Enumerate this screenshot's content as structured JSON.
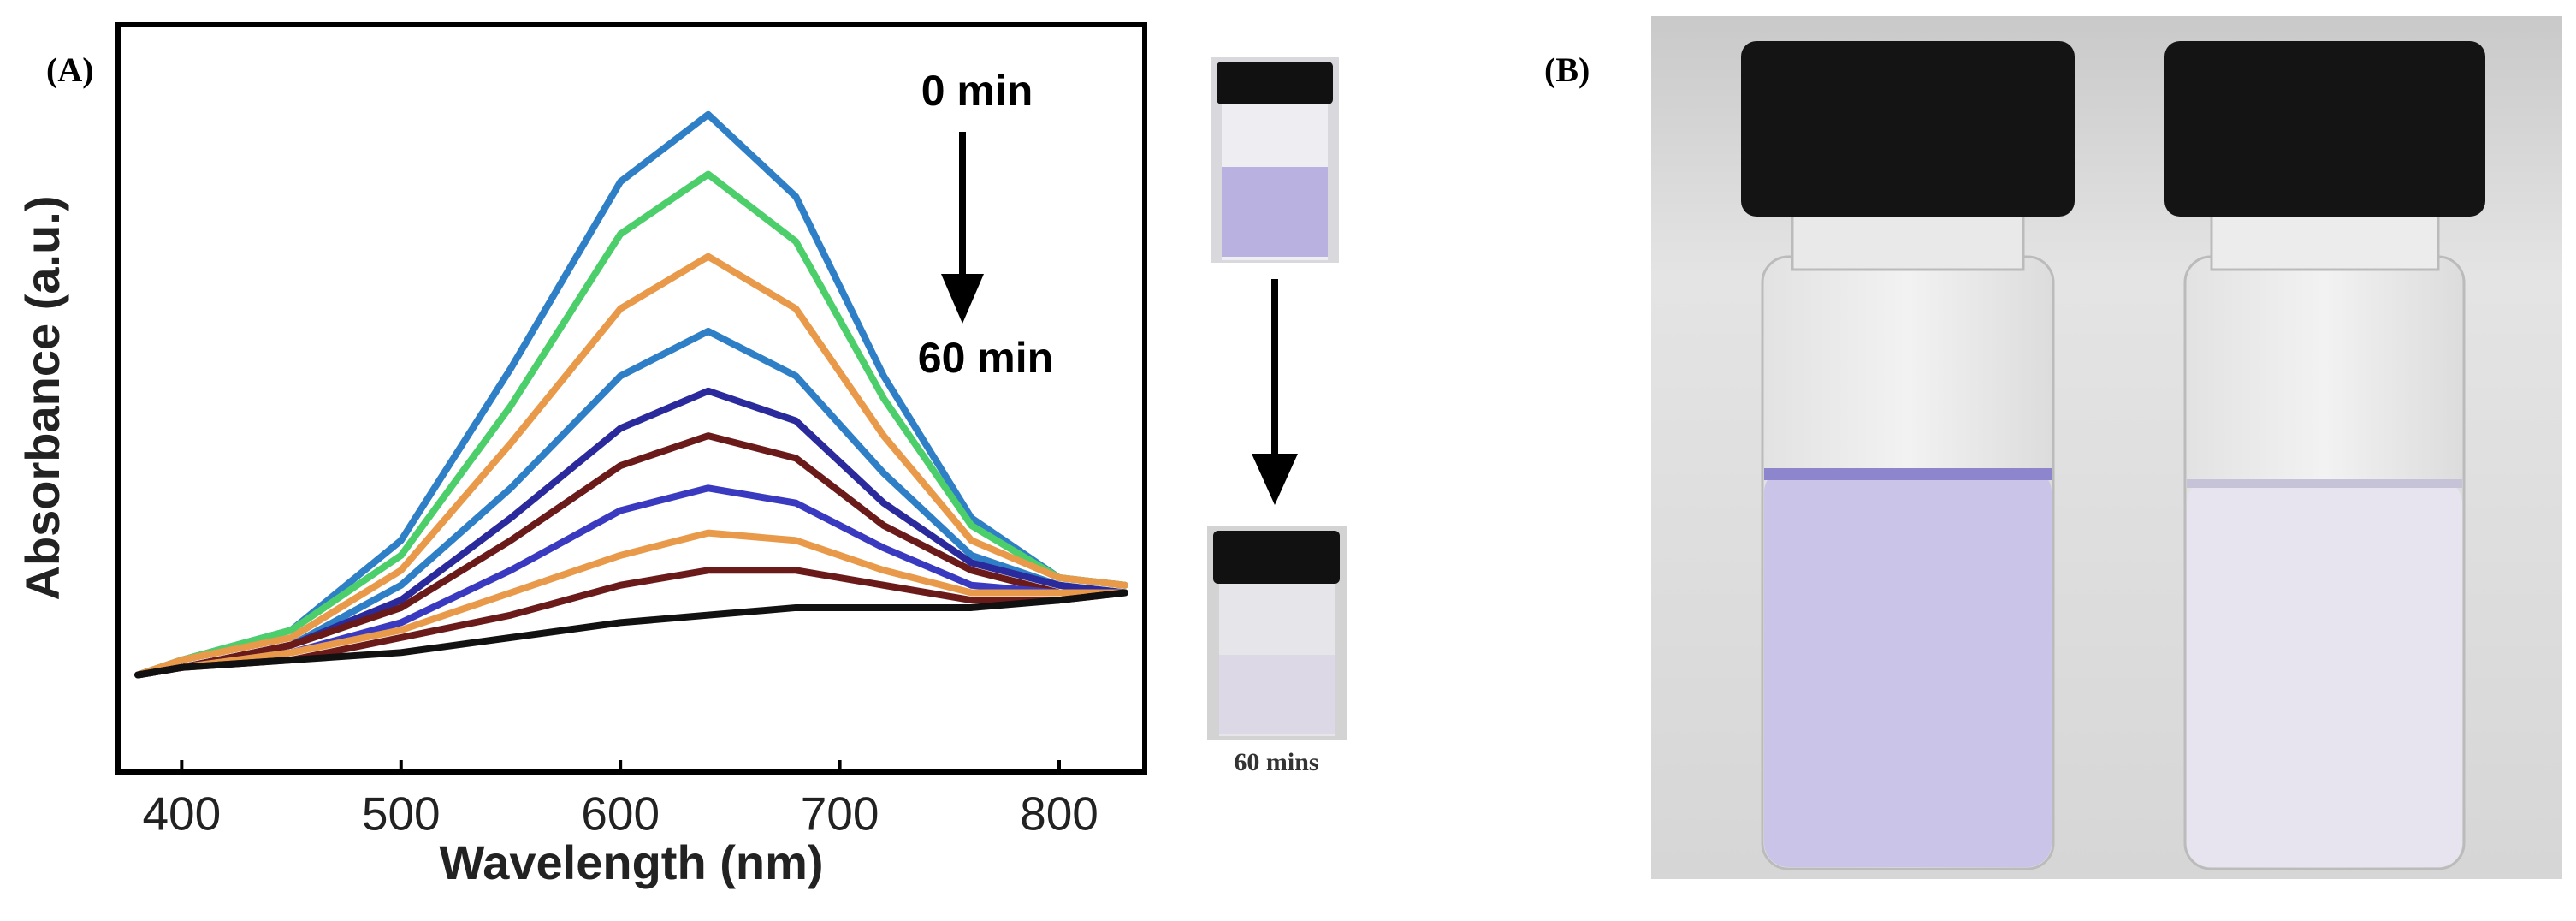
{
  "chart_data": {
    "type": "line",
    "panel_label": "(A)",
    "x_label": "Wavelength (nm)",
    "y_label": "Absorbance (a.u.)",
    "x": [
      380,
      400,
      450,
      500,
      550,
      600,
      640,
      680,
      720,
      760,
      800,
      830
    ],
    "series": [
      {
        "color": "#2f7fc7",
        "values": [
          0.13,
          0.15,
          0.19,
          0.31,
          0.54,
          0.79,
          0.88,
          0.77,
          0.53,
          0.34,
          0.26,
          0.25
        ]
      },
      {
        "color": "#4ccf6a",
        "values": [
          0.13,
          0.15,
          0.19,
          0.29,
          0.49,
          0.72,
          0.8,
          0.71,
          0.5,
          0.33,
          0.26,
          0.25
        ]
      },
      {
        "color": "#e89a4a",
        "values": [
          0.13,
          0.15,
          0.18,
          0.27,
          0.44,
          0.62,
          0.69,
          0.62,
          0.45,
          0.31,
          0.26,
          0.25
        ]
      },
      {
        "color": "#2f7fc7",
        "values": [
          0.13,
          0.14,
          0.17,
          0.25,
          0.38,
          0.53,
          0.59,
          0.53,
          0.4,
          0.29,
          0.25,
          0.24
        ]
      },
      {
        "color": "#2a2a9c",
        "values": [
          0.13,
          0.14,
          0.17,
          0.23,
          0.34,
          0.46,
          0.51,
          0.47,
          0.36,
          0.28,
          0.25,
          0.24
        ]
      },
      {
        "color": "#6b1a1a",
        "values": [
          0.13,
          0.14,
          0.17,
          0.22,
          0.31,
          0.41,
          0.45,
          0.42,
          0.33,
          0.27,
          0.24,
          0.24
        ]
      },
      {
        "color": "#3a3ac0",
        "values": [
          0.13,
          0.14,
          0.16,
          0.2,
          0.27,
          0.35,
          0.38,
          0.36,
          0.3,
          0.25,
          0.24,
          0.24
        ]
      },
      {
        "color": "#e89a4a",
        "values": [
          0.13,
          0.14,
          0.16,
          0.19,
          0.24,
          0.29,
          0.32,
          0.31,
          0.27,
          0.24,
          0.24,
          0.24
        ]
      },
      {
        "color": "#6b1a1a",
        "values": [
          0.13,
          0.14,
          0.15,
          0.18,
          0.21,
          0.25,
          0.27,
          0.27,
          0.25,
          0.23,
          0.23,
          0.24
        ]
      },
      {
        "color": "#111111",
        "values": [
          0.13,
          0.14,
          0.15,
          0.16,
          0.18,
          0.2,
          0.21,
          0.22,
          0.22,
          0.22,
          0.23,
          0.24
        ]
      }
    ],
    "xlim": [
      371,
      839
    ],
    "xticks": [
      400,
      500,
      600,
      700,
      800
    ],
    "ylim": [
      0,
      1
    ],
    "grid": false,
    "annotations": {
      "start": "0 min",
      "end": "60 min",
      "vial_caption": "60 mins"
    },
    "photo_label": "(B)"
  }
}
